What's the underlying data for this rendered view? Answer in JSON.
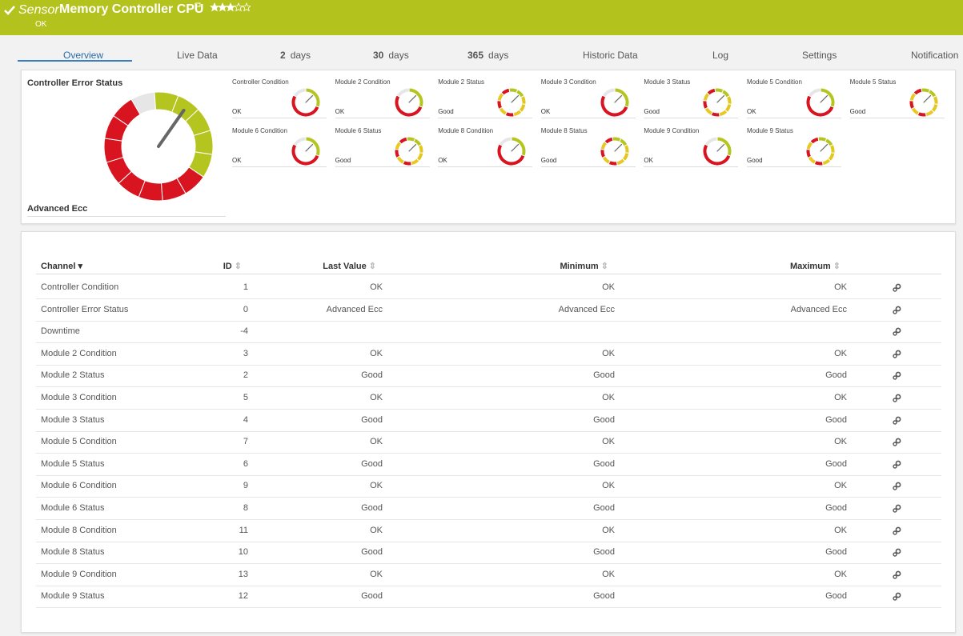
{
  "header": {
    "prefix": "Sensor",
    "title": "Memory Controller CPU",
    "status": "OK"
  },
  "tabs": [
    {
      "label": "Overview"
    },
    {
      "label": "Live Data"
    },
    {
      "number": "2",
      "label": "days"
    },
    {
      "number": "30",
      "label": "days"
    },
    {
      "number": "365",
      "label": "days"
    },
    {
      "label": "Historic Data"
    },
    {
      "label": "Log"
    },
    {
      "label": "Settings"
    },
    {
      "label": "Notification"
    }
  ],
  "main_gauge": {
    "title": "Controller Error Status",
    "value": "Advanced Ecc"
  },
  "gauges": [
    {
      "name": "Controller Condition",
      "value": "OK"
    },
    {
      "name": "Module 2 Condition",
      "value": "OK"
    },
    {
      "name": "Module 2 Status",
      "value": "Good"
    },
    {
      "name": "Module 3 Condition",
      "value": "OK"
    },
    {
      "name": "Module 3 Status",
      "value": "Good"
    },
    {
      "name": "Module 5 Condition",
      "value": "OK"
    },
    {
      "name": "Module 5 Status",
      "value": "Good"
    },
    {
      "name": "Module 6 Condition",
      "value": "OK"
    },
    {
      "name": "Module 6 Status",
      "value": "Good"
    },
    {
      "name": "Module 8 Condition",
      "value": "OK"
    },
    {
      "name": "Module 8 Status",
      "value": "Good"
    },
    {
      "name": "Module 9 Condition",
      "value": "OK"
    },
    {
      "name": "Module 9 Status",
      "value": "Good"
    }
  ],
  "table": {
    "columns": [
      "Channel",
      "ID",
      "Last Value",
      "Minimum",
      "Maximum"
    ],
    "rows": [
      {
        "channel": "Controller Condition",
        "id": 1,
        "last": "OK",
        "min": "OK",
        "max": "OK"
      },
      {
        "channel": "Controller Error Status",
        "id": 0,
        "last": "Advanced Ecc",
        "min": "Advanced Ecc",
        "max": "Advanced Ecc"
      },
      {
        "channel": "Downtime",
        "id": -4
      },
      {
        "channel": "Module 2 Condition",
        "id": 3,
        "last": "OK",
        "min": "OK",
        "max": "OK"
      },
      {
        "channel": "Module 2 Status",
        "id": 2,
        "last": "Good",
        "min": "Good",
        "max": "Good"
      },
      {
        "channel": "Module 3 Condition",
        "id": 5,
        "last": "OK",
        "min": "OK",
        "max": "OK"
      },
      {
        "channel": "Module 3 Status",
        "id": 4,
        "last": "Good",
        "min": "Good",
        "max": "Good"
      },
      {
        "channel": "Module 5 Condition",
        "id": 7,
        "last": "OK",
        "min": "OK",
        "max": "OK"
      },
      {
        "channel": "Module 5 Status",
        "id": 6,
        "last": "Good",
        "min": "Good",
        "max": "Good"
      },
      {
        "channel": "Module 6 Condition",
        "id": 9,
        "last": "OK",
        "min": "OK",
        "max": "OK"
      },
      {
        "channel": "Module 6 Status",
        "id": 8,
        "last": "Good",
        "min": "Good",
        "max": "Good"
      },
      {
        "channel": "Module 8 Condition",
        "id": 11,
        "last": "OK",
        "min": "OK",
        "max": "OK"
      },
      {
        "channel": "Module 8 Status",
        "id": 10,
        "last": "Good",
        "min": "Good",
        "max": "Good"
      },
      {
        "channel": "Module 9 Condition",
        "id": 13,
        "last": "OK",
        "min": "OK",
        "max": "OK"
      },
      {
        "channel": "Module 9 Status",
        "id": 12,
        "last": "Good",
        "min": "Good",
        "max": "Good"
      }
    ]
  }
}
